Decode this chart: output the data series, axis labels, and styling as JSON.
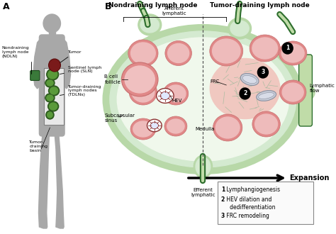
{
  "panel_A_label": "A",
  "panel_B_label": "B",
  "panel_B_title_left": "Nondraining lymph node",
  "panel_B_title_right": "Tumor-draining lymph node",
  "background_color": "#ffffff",
  "body_color": "#a8a8a8",
  "node_capsule_color": "#b8d8a8",
  "node_cortex_color": "#d4ead0",
  "node_inner_color": "#e8f4e4",
  "follicle_color": "#e08888",
  "follicle_edge": "#c87070",
  "follicle_inner_color": "#eaacac",
  "medulla_color": "#f0c8c0",
  "green_dark": "#2d6e2d",
  "green_med": "#4a8a4a",
  "green_light": "#c0dca8",
  "green_vessel": "#6aaa6a",
  "tumor_color": "#7a1a1a",
  "tumor_edge": "#5a0a0a",
  "gray_cell_color": "#c8ccd8",
  "gray_cell_edge": "#8890a0",
  "afferent_label": "Afferent\nlymphatic",
  "efferent_label": "Efferent\nlymphatic",
  "lymphatic_flow_label": "Lymphatic\nflow",
  "frc_label": "FRC",
  "medulla_label": "Medulla",
  "hev_label": "HEV",
  "b_cell_label": "B cell\nfollicle",
  "subcapsular_label": "Subcapsular\nsinus",
  "expansion_label": "Expansion",
  "ndln_label": "Nondraining\nlymph node\n(NDLN)",
  "tumor_label": "Tumor",
  "sln_label": "Sentinel lymph\nnode (SLN)",
  "tdln_label": "Tumor-draining\nlymph nodes\n(TDLNs)",
  "basin_label": "Tumor-\ndraining\nbasin",
  "legend_1_num": "1",
  "legend_1_text": " Lymphangiogenesis",
  "legend_2_num": "2",
  "legend_2_text": " HEV dilation and",
  "legend_2b_text": "   dedifferentiation",
  "legend_3_num": "3",
  "legend_3_text": " FRC remodeling"
}
